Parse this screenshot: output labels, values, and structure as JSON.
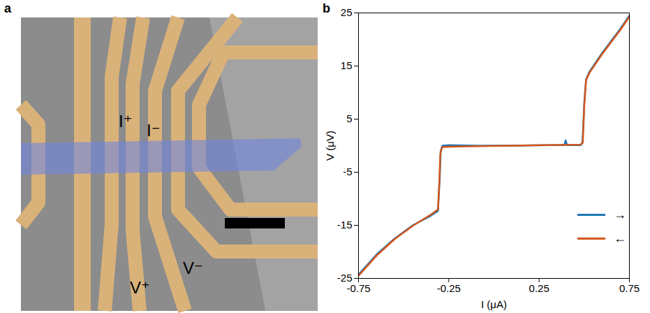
{
  "panel_a": {
    "letter": "a",
    "labels": [
      "I⁺",
      "I⁻",
      "V⁺",
      "V⁻"
    ]
  },
  "chart_data": {
    "letter": "b",
    "type": "line",
    "x_label": "I (μA)",
    "y_label": "V (μV)",
    "xlim": [
      -0.75,
      0.75
    ],
    "xticks": [
      -0.75,
      -0.25,
      0.25,
      0.75
    ],
    "ylim": [
      -25,
      25
    ],
    "yticks": [
      -25,
      -15,
      -5,
      5,
      15,
      25
    ],
    "legend": "bottom-right",
    "series": [
      {
        "name": "→",
        "color": "#1f78b4",
        "x": [
          -0.75,
          -0.65,
          -0.55,
          -0.45,
          -0.35,
          -0.31,
          -0.3,
          -0.295,
          -0.285,
          -0.25,
          -0.1,
          0.1,
          0.3,
          0.39,
          0.397,
          0.405,
          0.48,
          0.49,
          0.5,
          0.51,
          0.53,
          0.6,
          0.7,
          0.75
        ],
        "values": [
          -24.3,
          -20.5,
          -17.5,
          -15.0,
          -13.2,
          -12.3,
          -6.0,
          -1.0,
          0.0,
          0.1,
          0.0,
          0.0,
          0.1,
          0.1,
          1.0,
          0.1,
          0.1,
          0.5,
          8.0,
          12.5,
          14.0,
          17.5,
          22.0,
          24.5
        ]
      },
      {
        "name": "←",
        "color": "#d4561c",
        "x": [
          -0.75,
          -0.65,
          -0.55,
          -0.45,
          -0.35,
          -0.31,
          -0.302,
          -0.297,
          -0.287,
          -0.25,
          -0.1,
          0.1,
          0.3,
          0.48,
          0.492,
          0.5,
          0.51,
          0.53,
          0.6,
          0.7,
          0.75
        ],
        "values": [
          -24.5,
          -20.7,
          -17.6,
          -15.1,
          -13.0,
          -12.0,
          -6.5,
          -1.5,
          -0.3,
          -0.2,
          -0.1,
          0.0,
          0.1,
          0.2,
          0.6,
          7.5,
          12.3,
          13.8,
          17.3,
          21.8,
          24.3
        ]
      }
    ]
  }
}
